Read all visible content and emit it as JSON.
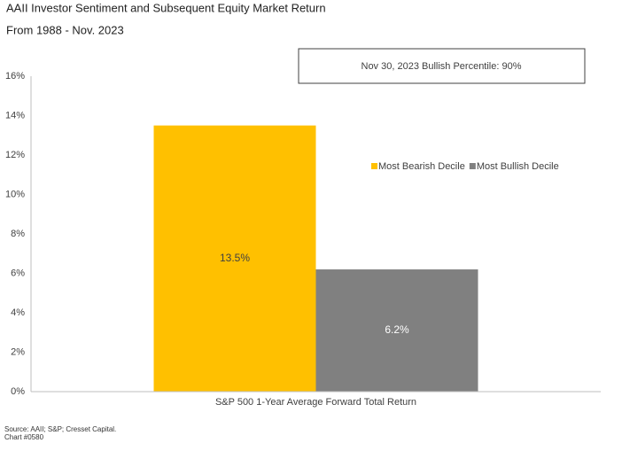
{
  "chart_data": {
    "type": "bar",
    "title": "AAII Investor Sentiment and Subsequent Equity Market Return",
    "subtitle": "From 1988 - Nov. 2023",
    "annotation": "Nov 30, 2023 Bullish Percentile: 90%",
    "source": "Source: AAII; S&P; Cresset Capital.",
    "chart_number": "Chart #0580",
    "categories": [
      "S&P 500 1-Year Average Forward Total Return"
    ],
    "series": [
      {
        "name": "Most Bearish Decile",
        "color": "#FFC000",
        "label_color": "#404040",
        "values": [
          13.5
        ],
        "value_labels": [
          "13.5%"
        ]
      },
      {
        "name": "Most Bullish Decile",
        "color": "#808080",
        "label_color": "#ffffff",
        "values": [
          6.2
        ],
        "value_labels": [
          "6.2%"
        ]
      }
    ],
    "ylim": [
      0,
      16
    ],
    "yticks": [
      {
        "value": 0,
        "label": "0%"
      },
      {
        "value": 2,
        "label": "2%"
      },
      {
        "value": 4,
        "label": "4%"
      },
      {
        "value": 6,
        "label": "6%"
      },
      {
        "value": 8,
        "label": "8%"
      },
      {
        "value": 10,
        "label": "10%"
      },
      {
        "value": 12,
        "label": "12%"
      },
      {
        "value": 14,
        "label": "14%"
      },
      {
        "value": 16,
        "label": "16%"
      }
    ],
    "grid": false
  }
}
